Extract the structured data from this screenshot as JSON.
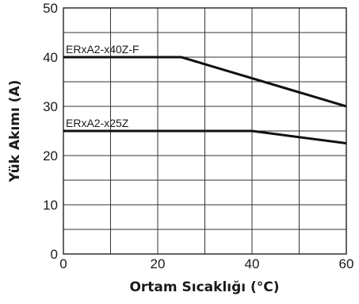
{
  "chart_data": {
    "type": "line",
    "xlabel": "Ortam Sıcaklığı (°C)",
    "ylabel": "Yük Akımı (A)",
    "xlim": [
      0,
      60
    ],
    "ylim": [
      0,
      50
    ],
    "x_ticks": [
      "0",
      "20",
      "40",
      "60"
    ],
    "y_ticks": [
      "0",
      "10",
      "20",
      "30",
      "40",
      "50"
    ],
    "grid": true,
    "series": [
      {
        "name": "ERxA2-x40Z-F",
        "x": [
          0,
          25,
          60
        ],
        "y": [
          40,
          40,
          30
        ]
      },
      {
        "name": "ERxA2-x25Z",
        "x": [
          0,
          40,
          60
        ],
        "y": [
          25,
          25,
          22.5
        ]
      }
    ]
  }
}
